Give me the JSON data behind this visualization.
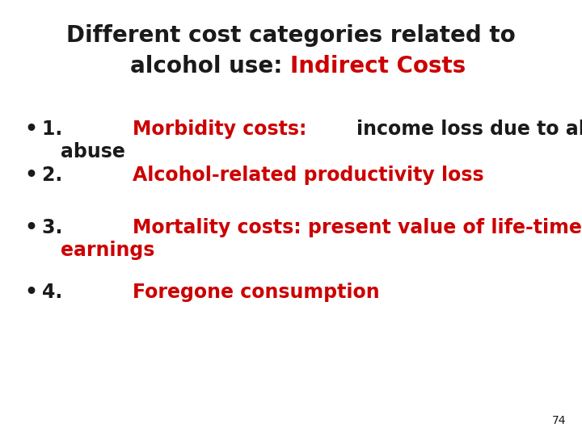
{
  "background_color": "#ffffff",
  "title_line1": "Different cost categories related to",
  "title_line2_black": "alcohol use: ",
  "title_line2_red": "Indirect Costs",
  "black_color": "#1a1a1a",
  "red_color": "#cc0000",
  "title_fontsize": 20,
  "bullet_fontsize": 17,
  "page_number": "74",
  "fig_width": 7.2,
  "fig_height": 5.4,
  "dpi": 100
}
